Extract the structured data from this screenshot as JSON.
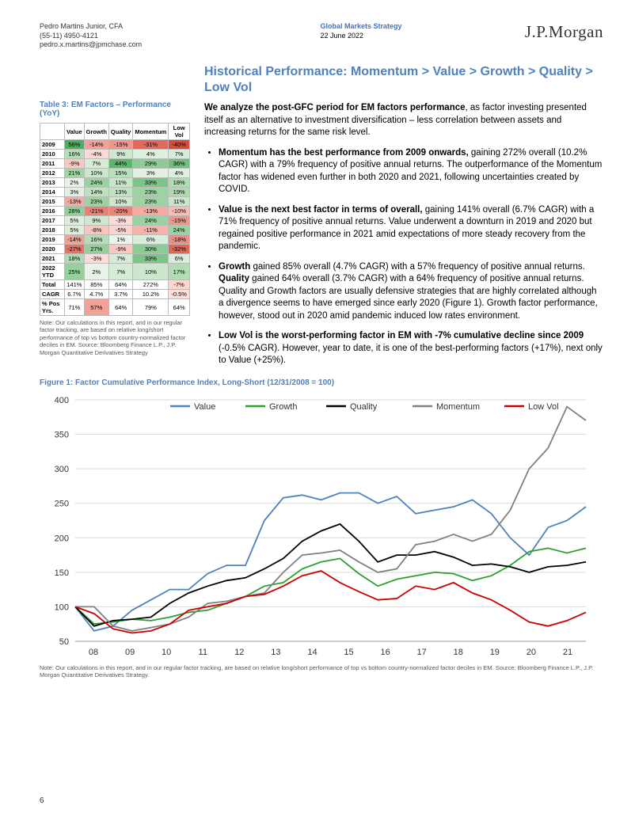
{
  "header": {
    "author": "Pedro Martins Junior, CFA",
    "phone": "(55-11) 4950-4121",
    "email": "pedro.x.martins@jpmchase.com",
    "group_label": "Global Markets Strategy",
    "date": "22 June 2022",
    "logo": "J.P.Morgan"
  },
  "section_heading": "Historical Performance: Momentum > Value > Growth > Quality > Low Vol",
  "intro_bold": "We analyze the post-GFC period for EM factors performance",
  "intro_rest": ", as factor investing presented itself as an alternative to investment diversification – less correlation between assets and increasing returns for the same risk level.",
  "bullets": [
    {
      "bold": "Momentum has the best performance from 2009 onwards,",
      "rest": " gaining 272% overall (10.2% CAGR) with a 79% frequency of positive annual returns. The outperformance of the Momentum factor has widened even further in both 2020 and 2021, following uncertainties created by COVID."
    },
    {
      "bold": "Value is the next best factor in terms of overall,",
      "rest": " gaining 141% overall (6.7% CAGR) with a 71% frequency of positive annual returns. Value underwent a downturn in 2019 and 2020 but regained positive performance in 2021 amid expectations of more steady recovery from the pandemic."
    },
    {
      "bold": "Growth",
      "rest": " gained 85% overall (4.7% CAGR) with a 57% frequency of positive annual returns. <b>Quality</b> gained 64% overall (3.7% CAGR) with a 64% frequency of positive annual returns. Quality and Growth factors are usually defensive strategies that are highly correlated although a divergence seems to have emerged since early 2020 (Figure 1). Growth factor performance, however, stood out in 2020 amid pandemic induced low rates environment."
    },
    {
      "bold": "Low Vol is the worst-performing factor in EM with -7% cumulative decline since 2009",
      "rest": " (-0.5% CAGR). However, year to date, it is one of the best-performing factors (+17%), next only to Value (+25%)."
    }
  ],
  "table": {
    "title": "Table 3: EM Factors – Performance (YoY)",
    "columns": [
      "",
      "Value",
      "Growth",
      "Quality",
      "Momentum",
      "Low Vol"
    ],
    "rows": [
      {
        "l": "2009",
        "c": [
          [
            "56%",
            "#4ead5f"
          ],
          [
            "-14%",
            "#f2a197"
          ],
          [
            "-15%",
            "#ef968b"
          ],
          [
            "-31%",
            "#e2695a"
          ],
          [
            "-40%",
            "#d84b38"
          ]
        ]
      },
      {
        "l": "2010",
        "c": [
          [
            "16%",
            "#b4dfb6"
          ],
          [
            "-4%",
            "#fcd9d3"
          ],
          [
            "9%",
            "#cfe8d0"
          ],
          [
            "4%",
            "#def0de"
          ],
          [
            "7%",
            "#d6ecd6"
          ]
        ]
      },
      {
        "l": "2011",
        "c": [
          [
            "-9%",
            "#f9c8c0"
          ],
          [
            "7%",
            "#d6ecd6"
          ],
          [
            "44%",
            "#5db46d"
          ],
          [
            "29%",
            "#8ecc97"
          ],
          [
            "36%",
            "#72be7e"
          ]
        ]
      },
      {
        "l": "2012",
        "c": [
          [
            "21%",
            "#a0d6a4"
          ],
          [
            "10%",
            "#cce7cd"
          ],
          [
            "15%",
            "#b8e0ba"
          ],
          [
            "3%",
            "#e2f1e2"
          ],
          [
            "4%",
            "#def0de"
          ]
        ]
      },
      {
        "l": "2013",
        "c": [
          [
            "2%",
            "#e7f3e7"
          ],
          [
            "24%",
            "#99d39e"
          ],
          [
            "11%",
            "#c9e6ca"
          ],
          [
            "33%",
            "#7cc487"
          ],
          [
            "18%",
            "#aedbb1"
          ]
        ]
      },
      {
        "l": "2014",
        "c": [
          [
            "3%",
            "#e2f1e2"
          ],
          [
            "14%",
            "#bce2be"
          ],
          [
            "13%",
            "#bfe3c1"
          ],
          [
            "23%",
            "#9cd4a0"
          ],
          [
            "19%",
            "#abdaae"
          ]
        ]
      },
      {
        "l": "2015",
        "c": [
          [
            "-13%",
            "#f4aba1"
          ],
          [
            "23%",
            "#9cd4a0"
          ],
          [
            "10%",
            "#cce7cd"
          ],
          [
            "23%",
            "#9cd4a0"
          ],
          [
            "11%",
            "#c9e6ca"
          ]
        ]
      },
      {
        "l": "2016",
        "c": [
          [
            "28%",
            "#91cd99"
          ],
          [
            "-21%",
            "#ea8073"
          ],
          [
            "-20%",
            "#eb8578"
          ],
          [
            "-13%",
            "#f4aba1"
          ],
          [
            "-10%",
            "#f7bcb3"
          ]
        ]
      },
      {
        "l": "2017",
        "c": [
          [
            "5%",
            "#dbefdb"
          ],
          [
            "9%",
            "#cfe8d0"
          ],
          [
            "-3%",
            "#fddbd6"
          ],
          [
            "24%",
            "#99d39e"
          ],
          [
            "-15%",
            "#ef968b"
          ]
        ]
      },
      {
        "l": "2018",
        "c": [
          [
            "5%",
            "#dbefdb"
          ],
          [
            "-8%",
            "#fac5bd"
          ],
          [
            "-5%",
            "#fcd2cc"
          ],
          [
            "-11%",
            "#f6b3a9"
          ],
          [
            "24%",
            "#99d39e"
          ]
        ]
      },
      {
        "l": "2019",
        "c": [
          [
            "-14%",
            "#f2a197"
          ],
          [
            "16%",
            "#b4dfb6"
          ],
          [
            "1%",
            "#ebf5eb"
          ],
          [
            "6%",
            "#d9eeda"
          ],
          [
            "-18%",
            "#ed8e82"
          ]
        ]
      },
      {
        "l": "2020",
        "c": [
          [
            "-27%",
            "#e57365"
          ],
          [
            "27%",
            "#93ce9b"
          ],
          [
            "-9%",
            "#f9c8c0"
          ],
          [
            "30%",
            "#8bcb94"
          ],
          [
            "-32%",
            "#e16656"
          ]
        ]
      },
      {
        "l": "2021",
        "c": [
          [
            "18%",
            "#aedbb1"
          ],
          [
            "-3%",
            "#fddbd6"
          ],
          [
            "7%",
            "#d6ecd6"
          ],
          [
            "33%",
            "#7cc487"
          ],
          [
            "6%",
            "#d9eeda"
          ]
        ]
      },
      {
        "l": "2022 YTD",
        "c": [
          [
            "25%",
            "#96d19c"
          ],
          [
            "2%",
            "#e7f3e7"
          ],
          [
            "7%",
            "#d6ecd6"
          ],
          [
            "10%",
            "#cce7cd"
          ],
          [
            "17%",
            "#b1dcb4"
          ]
        ]
      },
      {
        "l": "Total",
        "c": [
          [
            "141%",
            "#ffffff"
          ],
          [
            "85%",
            "#ffffff"
          ],
          [
            "64%",
            "#ffffff"
          ],
          [
            "272%",
            "#ffffff"
          ],
          [
            "-7%",
            "#fcd6d0"
          ]
        ]
      },
      {
        "l": "CAGR",
        "c": [
          [
            "6.7%",
            "#ffffff"
          ],
          [
            "4.7%",
            "#ffffff"
          ],
          [
            "3.7%",
            "#ffffff"
          ],
          [
            "10.2%",
            "#ffffff"
          ],
          [
            "-0.5%",
            "#fde0db"
          ]
        ]
      },
      {
        "l": "% Pos Yrs.",
        "c": [
          [
            "71%",
            "#ffffff"
          ],
          [
            "57%",
            "#f2a197"
          ],
          [
            "64%",
            "#ffffff"
          ],
          [
            "79%",
            "#ffffff"
          ],
          [
            "64%",
            "#ffffff"
          ]
        ]
      }
    ],
    "note": "Note: Our calculations in this report, and in our regular factor tracking, are based on relative long/short performance of top vs bottom country-normalized factor deciles in EM. Source: Bloomberg Finance L.P., J.P. Morgan Quantitative Derivatives Strategy"
  },
  "figure": {
    "title": "Figure 1: Factor Cumulative Performance Index, Long-Short (12/31/2008 = 100)",
    "legend": [
      {
        "label": "Value",
        "color": "#4f81bd"
      },
      {
        "label": "Growth",
        "color": "#2ca02c"
      },
      {
        "label": "Quality",
        "color": "#000000"
      },
      {
        "label": "Momentum",
        "color": "#808080"
      },
      {
        "label": "Low Vol",
        "color": "#cc0000"
      }
    ],
    "x_ticks": [
      "08",
      "09",
      "10",
      "11",
      "12",
      "13",
      "14",
      "15",
      "16",
      "17",
      "18",
      "19",
      "20",
      "21"
    ],
    "y_ticks": [
      50,
      100,
      150,
      200,
      250,
      300,
      350,
      400
    ],
    "ylim": [
      50,
      400
    ],
    "xlim": [
      0,
      14
    ],
    "line_width": 1.8,
    "background_color": "#ffffff",
    "grid_color": "#d9d9d9",
    "series": {
      "Value": [
        100,
        65,
        72,
        95,
        110,
        125,
        125,
        148,
        160,
        160,
        225,
        258,
        262,
        255,
        265,
        265,
        250,
        260,
        235,
        240,
        245,
        255,
        235,
        200,
        175,
        215,
        225,
        245
      ],
      "Growth": [
        100,
        75,
        78,
        82,
        80,
        85,
        92,
        95,
        105,
        115,
        130,
        135,
        155,
        165,
        170,
        148,
        130,
        140,
        145,
        150,
        148,
        138,
        145,
        160,
        180,
        185,
        178,
        185
      ],
      "Quality": [
        100,
        72,
        80,
        82,
        85,
        105,
        120,
        130,
        138,
        142,
        155,
        170,
        195,
        210,
        220,
        195,
        165,
        175,
        175,
        180,
        172,
        160,
        162,
        158,
        150,
        158,
        160,
        165
      ],
      "Momentum": [
        100,
        100,
        72,
        65,
        70,
        75,
        85,
        105,
        108,
        115,
        120,
        150,
        175,
        178,
        182,
        165,
        150,
        155,
        190,
        195,
        205,
        195,
        205,
        240,
        300,
        330,
        390,
        370
      ],
      "Low Vol": [
        100,
        90,
        68,
        62,
        65,
        75,
        95,
        100,
        105,
        115,
        118,
        130,
        145,
        152,
        135,
        122,
        110,
        112,
        130,
        125,
        135,
        120,
        110,
        95,
        78,
        72,
        80,
        92
      ]
    },
    "note": "Note: Our calculations in this report, and in our regular factor tracking, are based on relative long/short performance of top vs bottom country-normalized factor deciles in EM. Source: Bloomberg Finance L.P., J.P. Morgan Quantitative Derivatives Strategy."
  },
  "page_number": "6"
}
